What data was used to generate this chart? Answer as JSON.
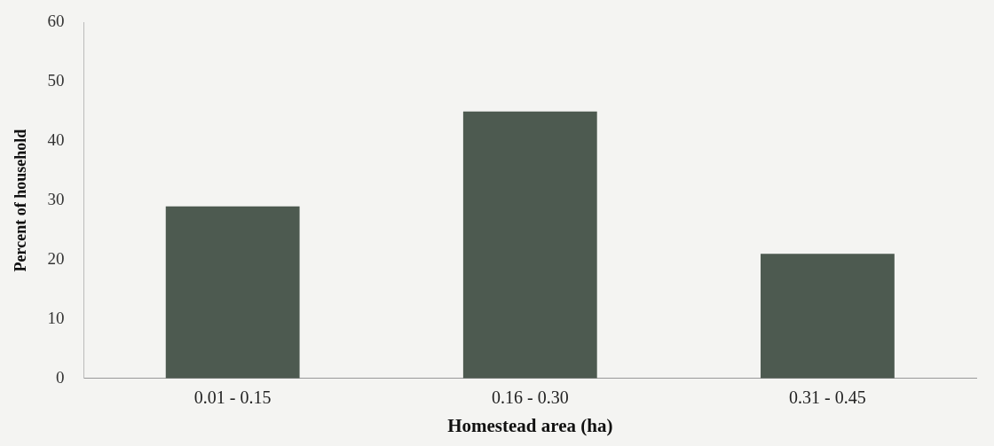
{
  "chart_data": {
    "type": "bar",
    "xlabel": "Homestead area (ha)",
    "ylabel": "Percent of household",
    "categories": [
      "0.01 - 0.15",
      "0.16 - 0.30",
      "0.31 - 0.45"
    ],
    "values": [
      29,
      45,
      21
    ],
    "color": "#4d5a50",
    "ylim": [
      0,
      60
    ],
    "yticks": [
      0,
      10,
      20,
      30,
      40,
      50,
      60
    ],
    "grid": false,
    "legend": false
  }
}
